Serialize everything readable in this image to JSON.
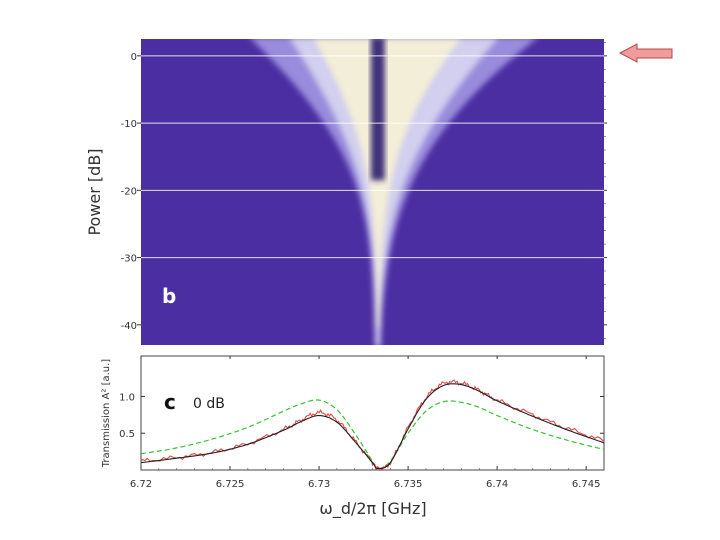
{
  "colors": {
    "background_map": "#4b2ea2",
    "peak_map": "#f4efd6",
    "fit_line": "#222222",
    "data_line": "#e04a4a",
    "dashed_line": "#35c335",
    "arrow_fill": "#ef9c9c",
    "arrow_stroke": "#b84848"
  },
  "icons": {
    "arrow": "left-arrow-icon"
  },
  "chart_data": [
    {
      "type": "heatmap",
      "panel_label": "b",
      "ylabel": "Power [dB]",
      "xlim": [
        6.72,
        6.746
      ],
      "ylim": [
        -43,
        2.5
      ],
      "yticks": [
        0,
        -10,
        -20,
        -30,
        -40
      ],
      "y_tick_labels": [
        "0",
        "-10",
        "-20",
        "-30",
        "-40"
      ],
      "horizontal_lines_dB": [
        0,
        -10,
        -20,
        -30
      ],
      "center_GHz": 6.7333,
      "left_peak_GHz": 6.73,
      "right_peak_GHz": 6.737,
      "split_onset_dB": -20,
      "grid": false
    },
    {
      "type": "line",
      "panel_label": "c",
      "annotation": "0 dB",
      "xlabel": "ω_d/2π [GHz]",
      "ylabel": "Transmission A² [a.u.]",
      "xlim": [
        6.72,
        6.746
      ],
      "ylim": [
        0,
        1.55
      ],
      "xticks": [
        6.72,
        6.725,
        6.73,
        6.735,
        6.74,
        6.745
      ],
      "x_tick_labels": [
        "6.72",
        "6.725",
        "6.73",
        "6.735",
        "6.74",
        "6.745"
      ],
      "yticks": [
        0.5,
        1.0
      ],
      "y_tick_labels": [
        "0.5",
        "1.0"
      ],
      "x": [
        6.72,
        6.722,
        6.724,
        6.726,
        6.728,
        6.729,
        6.73,
        6.731,
        6.732,
        6.733,
        6.7333,
        6.734,
        6.735,
        6.736,
        6.737,
        6.738,
        6.739,
        6.74,
        6.742,
        6.744,
        6.746
      ],
      "series": [
        {
          "kind": "measured",
          "values": [
            0.12,
            0.17,
            0.24,
            0.36,
            0.55,
            0.68,
            0.78,
            0.68,
            0.4,
            0.1,
            0.02,
            0.1,
            0.58,
            0.98,
            1.18,
            1.18,
            1.08,
            0.95,
            0.75,
            0.56,
            0.4
          ]
        },
        {
          "kind": "fit",
          "values": [
            0.1,
            0.16,
            0.23,
            0.35,
            0.54,
            0.66,
            0.74,
            0.65,
            0.39,
            0.1,
            0.02,
            0.1,
            0.56,
            0.96,
            1.15,
            1.16,
            1.07,
            0.94,
            0.73,
            0.54,
            0.37
          ]
        },
        {
          "kind": "dashed",
          "values": [
            0.22,
            0.3,
            0.42,
            0.58,
            0.8,
            0.9,
            0.95,
            0.82,
            0.5,
            0.12,
            0.02,
            0.12,
            0.5,
            0.8,
            0.93,
            0.92,
            0.85,
            0.74,
            0.55,
            0.4,
            0.28
          ]
        }
      ],
      "grid": false
    }
  ]
}
